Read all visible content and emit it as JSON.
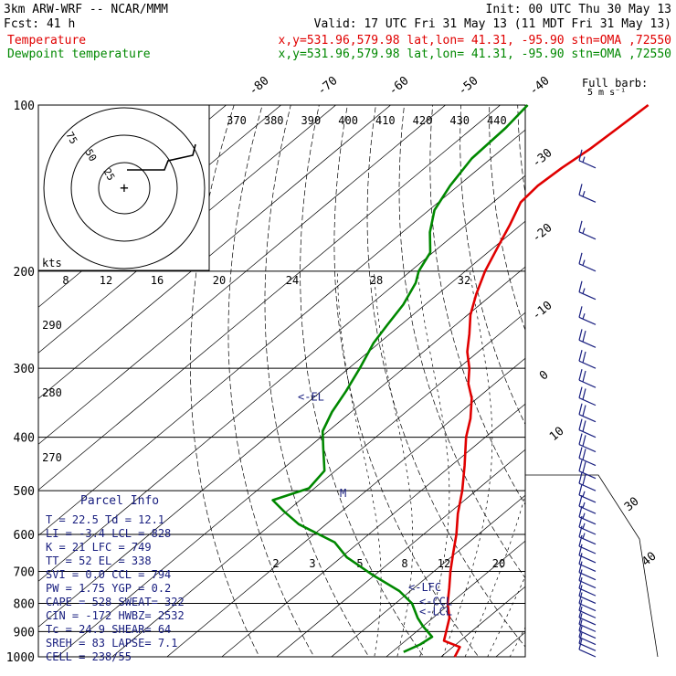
{
  "header": {
    "model": "3km ARW-WRF -- NCAR/MMM",
    "init": "Init: 00 UTC Thu 30 May 13",
    "fcst": "Fcst:   41 h",
    "valid": "Valid: 17 UTC Fri 31 May 13 (11 MDT Fri 31 May 13)",
    "temp_label": "Temperature",
    "temp_loc": "x,y=531.96,579.98   lat,lon= 41.31, -95.90   stn=OMA ,72550",
    "dew_label": "Dewpoint temperature",
    "dew_loc": "x,y=531.96,579.98   lat,lon= 41.31, -95.90   stn=OMA ,72550",
    "full_barb": "Full barb:",
    "full_barb_unit": "5 m s⁻¹"
  },
  "colors": {
    "temperature": "#e00000",
    "dewpoint": "#008800",
    "wind": "#1a2080",
    "parcel_info": "#1a2080"
  },
  "chart_data": {
    "type": "line",
    "subtype": "skew-T log-p sounding",
    "pressure_axis": {
      "levels": [
        100,
        200,
        300,
        400,
        500,
        600,
        700,
        800,
        900,
        1000
      ],
      "labels": [
        "100",
        "200",
        "300",
        "400",
        "500",
        "600",
        "700",
        "800",
        "900",
        "1000"
      ],
      "scale": "log"
    },
    "isotherm_labels": [
      "-80",
      "-70",
      "-60",
      "-50",
      "-40",
      "-30",
      "-20",
      "-10",
      "0",
      "10",
      "30",
      "40"
    ],
    "theta_labels": [
      "370",
      "380",
      "390",
      "400",
      "410",
      "420",
      "430",
      "440"
    ],
    "mixing_ratio_labels": [
      "2",
      "3",
      "5",
      "8",
      "12",
      "20"
    ],
    "theta_left_labels": [
      "290",
      "280",
      "270"
    ],
    "series": [
      {
        "name": "Temperature",
        "x_unit": "degC",
        "points": [
          [
            1000,
            22.5
          ],
          [
            960,
            21.3
          ],
          [
            935,
            17.0
          ],
          [
            900,
            15.4
          ],
          [
            850,
            13.0
          ],
          [
            800,
            9.5
          ],
          [
            750,
            6.4
          ],
          [
            700,
            3.0
          ],
          [
            650,
            -0.4
          ],
          [
            600,
            -4.0
          ],
          [
            550,
            -8.3
          ],
          [
            500,
            -12.5
          ],
          [
            450,
            -17.6
          ],
          [
            400,
            -23.5
          ],
          [
            370,
            -26.8
          ],
          [
            340,
            -31.0
          ],
          [
            320,
            -34.8
          ],
          [
            300,
            -38.0
          ],
          [
            280,
            -42.0
          ],
          [
            260,
            -45.5
          ],
          [
            240,
            -49.5
          ],
          [
            220,
            -53.0
          ],
          [
            200,
            -56.4
          ],
          [
            180,
            -59.5
          ],
          [
            165,
            -62.0
          ],
          [
            150,
            -65.0
          ],
          [
            140,
            -65.5
          ],
          [
            130,
            -65.0
          ],
          [
            120,
            -64.0
          ],
          [
            110,
            -63.5
          ],
          [
            100,
            -63.0
          ]
        ]
      },
      {
        "name": "Dewpoint temperature",
        "x_unit": "degC",
        "points": [
          [
            980,
            12.1
          ],
          [
            950,
            13.5
          ],
          [
            920,
            14.0
          ],
          [
            880,
            10.0
          ],
          [
            850,
            7.2
          ],
          [
            800,
            3.0
          ],
          [
            760,
            -2.0
          ],
          [
            710,
            -10.5
          ],
          [
            660,
            -19.0
          ],
          [
            620,
            -24.5
          ],
          [
            575,
            -35.0
          ],
          [
            545,
            -40.5
          ],
          [
            520,
            -45.0
          ],
          [
            495,
            -41.0
          ],
          [
            460,
            -42.0
          ],
          [
            420,
            -47.0
          ],
          [
            390,
            -51.0
          ],
          [
            360,
            -53.5
          ],
          [
            330,
            -55.5
          ],
          [
            300,
            -58.0
          ],
          [
            270,
            -61.0
          ],
          [
            250,
            -62.5
          ],
          [
            230,
            -64.0
          ],
          [
            210,
            -66.5
          ],
          [
            200,
            -68.5
          ],
          [
            185,
            -70.5
          ],
          [
            170,
            -75.0
          ],
          [
            155,
            -79.0
          ],
          [
            140,
            -81.5
          ],
          [
            125,
            -83.5
          ],
          [
            110,
            -84.0
          ],
          [
            100,
            -85.0
          ]
        ]
      }
    ],
    "annotations": [
      {
        "text": "<-EL",
        "pressure": 338
      },
      {
        "text": "<-LFC",
        "pressure": 749
      },
      {
        "text": "<-CCL",
        "pressure": 794
      },
      {
        "text": "<-LCL",
        "pressure": 828
      },
      {
        "text": "M",
        "pressure": 505
      }
    ],
    "hodograph": {
      "unit_label": "kts",
      "speed_rings": [
        "25",
        "50",
        "75"
      ],
      "center_mark": "+",
      "scale_labels": [
        "8",
        "12",
        "16",
        "20",
        "24",
        "28",
        "32"
      ]
    },
    "wind_profile": {
      "unit": "m s-1",
      "barbs": [
        {
          "p": 130,
          "speed": 15
        },
        {
          "p": 150,
          "speed": 15
        },
        {
          "p": 175,
          "speed": 15
        },
        {
          "p": 200,
          "speed": 15
        },
        {
          "p": 225,
          "speed": 15
        },
        {
          "p": 250,
          "speed": 15
        },
        {
          "p": 275,
          "speed": 20
        },
        {
          "p": 300,
          "speed": 20
        },
        {
          "p": 325,
          "speed": 20
        },
        {
          "p": 350,
          "speed": 20
        },
        {
          "p": 375,
          "speed": 20
        },
        {
          "p": 400,
          "speed": 20
        },
        {
          "p": 425,
          "speed": 20
        },
        {
          "p": 450,
          "speed": 20
        },
        {
          "p": 475,
          "speed": 20
        },
        {
          "p": 500,
          "speed": 20
        },
        {
          "p": 525,
          "speed": 15
        },
        {
          "p": 550,
          "speed": 15
        },
        {
          "p": 575,
          "speed": 15
        },
        {
          "p": 600,
          "speed": 15
        },
        {
          "p": 625,
          "speed": 15
        },
        {
          "p": 650,
          "speed": 10
        },
        {
          "p": 675,
          "speed": 10
        },
        {
          "p": 700,
          "speed": 10
        },
        {
          "p": 725,
          "speed": 10
        },
        {
          "p": 750,
          "speed": 10
        },
        {
          "p": 775,
          "speed": 10
        },
        {
          "p": 800,
          "speed": 10
        },
        {
          "p": 825,
          "speed": 10
        },
        {
          "p": 850,
          "speed": 10
        },
        {
          "p": 875,
          "speed": 10
        },
        {
          "p": 900,
          "speed": 10
        },
        {
          "p": 925,
          "speed": 10
        },
        {
          "p": 950,
          "speed": 10
        },
        {
          "p": 975,
          "speed": 10
        },
        {
          "p": 1000,
          "speed": 10
        }
      ]
    }
  },
  "parcel_info": {
    "title": "Parcel Info",
    "rows": [
      "T  =   22.5  Td =  12.1",
      "LI =   -3.4  LCL =  828",
      "K  =     21  LFC =  749",
      "TT =     52  EL  =  338",
      "SVI =   0.0  CCL =  794",
      "PW =   1.75  YGP =  0.2",
      "CAPE =  528  SWEAT=  322",
      "CIN =  -172  HWBZ= 2532",
      "Tc =   24.9  SHEAR=  64",
      "SREH =   83  LAPSE=  7.1",
      "CELL = 238/55"
    ]
  }
}
